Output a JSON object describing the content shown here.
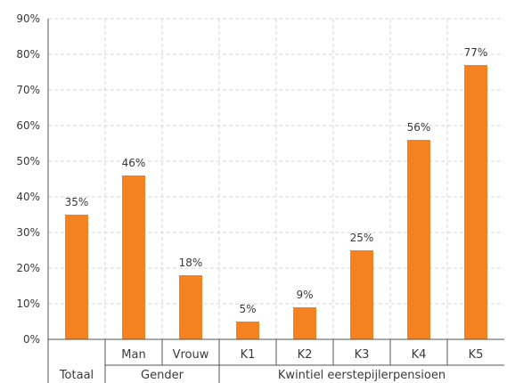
{
  "chart_data": {
    "type": "bar",
    "title": "",
    "xlabel": "",
    "ylabel": "",
    "ylim": [
      0,
      90
    ],
    "yticks": [
      0,
      10,
      20,
      30,
      40,
      50,
      60,
      70,
      80,
      90
    ],
    "ytick_labels": [
      "0%",
      "10%",
      "20%",
      "30%",
      "40%",
      "50%",
      "60%",
      "70%",
      "80%",
      "90%"
    ],
    "grid": "dashed",
    "legend": "none",
    "bar_color": "#f58220",
    "categories": [
      "",
      "Man",
      "Vrouw",
      "K1",
      "K2",
      "K3",
      "K4",
      "K5"
    ],
    "values": [
      35,
      46,
      18,
      5,
      9,
      25,
      56,
      77
    ],
    "data_labels": [
      "35%",
      "46%",
      "18%",
      "5%",
      "9%",
      "25%",
      "56%",
      "77%"
    ],
    "groups": [
      {
        "label": "Totaal",
        "span": 1
      },
      {
        "label": "Gender",
        "span": 2
      },
      {
        "label": "Kwintiel eerstepijlerpensioen",
        "span": 5
      }
    ]
  }
}
